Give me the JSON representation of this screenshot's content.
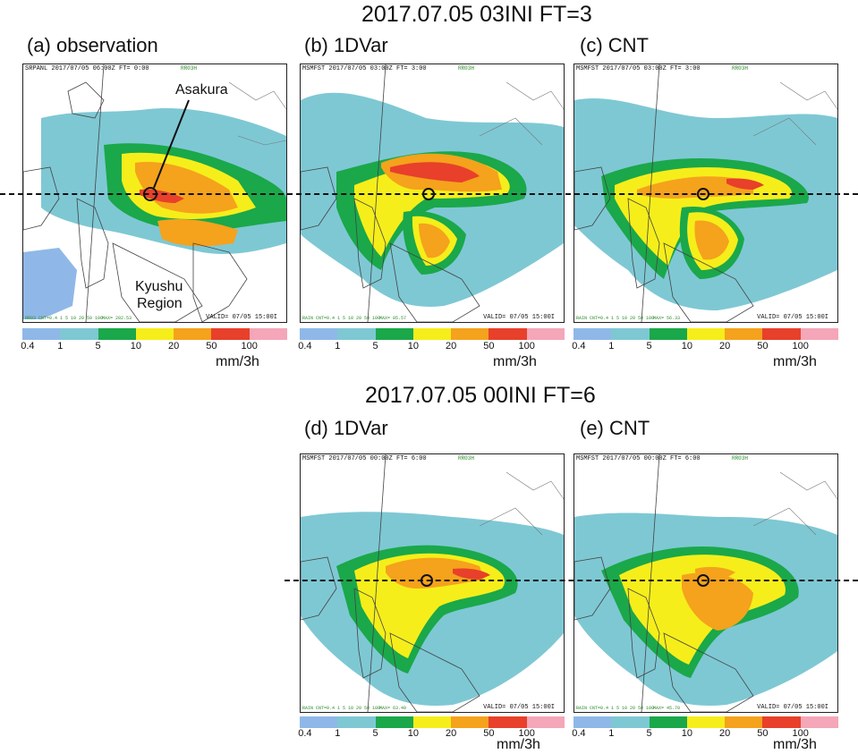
{
  "titles": {
    "top": "2017.07.05 03INI FT=3",
    "bottom": "2017.07.05 00INI FT=6"
  },
  "panels": {
    "a": {
      "label": "(a) observation",
      "header": "SRPANL 2017/07/05 06:00Z FT=  0:00",
      "header_right": "RR03H",
      "footer": "RR03 CNT=0.4 1 5 10 20 50 100",
      "footer2": "MAX=  202.53",
      "valid": "VALID= 07/05 15:00I"
    },
    "b": {
      "label": "(b) 1DVar",
      "header": "MSMFST 2017/07/05 03:00Z FT=  3:00",
      "header_right": "RR03H",
      "footer": "RAIN CNT=0.4 1 5 10 20 50 100",
      "footer2": "MAX=  85.57",
      "valid": "VALID= 07/05 15:00I"
    },
    "c": {
      "label": "(c) CNT",
      "header": "MSMFST 2017/07/05 03:00Z FT=  3:00",
      "header_right": "RR03H",
      "footer": "RAIN CNT=0.4 1 5 10 20 50 100",
      "footer2": "MAX=  56.33",
      "valid": "VALID= 07/05 15:00I"
    },
    "d": {
      "label": "(d) 1DVar",
      "header": "MSMFST 2017/07/05 00:00Z FT=  6:00",
      "header_right": "RR03H",
      "footer": "RAIN CNT=0.4 1 5 10 20 50 100",
      "footer2": "MAX=  63.49",
      "valid": "VALID= 07/05 15:00I"
    },
    "e": {
      "label": "(e) CNT",
      "header": "MSMFST 2017/07/05 00:00Z FT=  6:00",
      "header_right": "RR03H",
      "footer": "RAIN CNT=0.4 1 5 10 20 50 100",
      "footer2": "MAX=  45.70",
      "valid": "VALID= 07/05 15:00I"
    }
  },
  "annotations": {
    "asakura": "Asakura",
    "region_line1": "Kyushu",
    "region_line2": "Region"
  },
  "colorbar": {
    "colors": [
      "#8fb8e8",
      "#7ec8d4",
      "#1aa84a",
      "#f6ee1a",
      "#f5a21c",
      "#e8402a",
      "#f5a6b8"
    ],
    "ticks": [
      "0.4",
      "1",
      "5",
      "10",
      "20",
      "50",
      "100"
    ],
    "unit": "mm/3h"
  }
}
